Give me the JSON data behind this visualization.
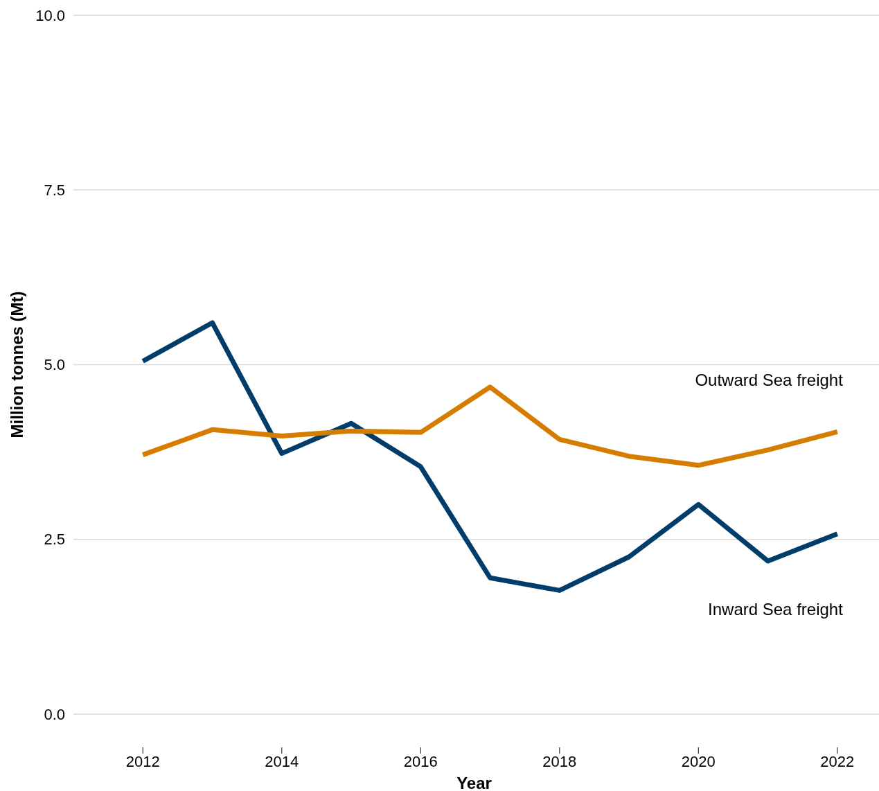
{
  "chart_data": {
    "type": "line",
    "xlabel": "Year",
    "ylabel": "Million tonnes (Mt)",
    "x": [
      2012,
      2013,
      2014,
      2015,
      2016,
      2017,
      2018,
      2019,
      2020,
      2021,
      2022
    ],
    "series": [
      {
        "name": "Inward Sea freight",
        "color": "#003d6b",
        "values": [
          5.05,
          5.6,
          3.73,
          4.16,
          3.54,
          1.95,
          1.77,
          2.25,
          3.0,
          2.19,
          2.58
        ]
      },
      {
        "name": "Outward Sea freight",
        "color": "#d67c00",
        "values": [
          3.71,
          4.07,
          3.98,
          4.05,
          4.03,
          4.68,
          3.93,
          3.69,
          3.56,
          3.78,
          4.04
        ]
      }
    ],
    "xlim": [
      2011,
      2022.6
    ],
    "xticks": [
      2012,
      2014,
      2016,
      2018,
      2020,
      2022
    ],
    "ylim": [
      0,
      10
    ],
    "yticks": [
      {
        "value": 0,
        "label": "0.0"
      },
      {
        "value": 2.5,
        "label": "2.5"
      },
      {
        "value": 5,
        "label": "5.0"
      },
      {
        "value": 7.5,
        "label": "7.5"
      },
      {
        "value": 10,
        "label": "10.0"
      }
    ],
    "grid": "y",
    "line_style": "solid"
  }
}
